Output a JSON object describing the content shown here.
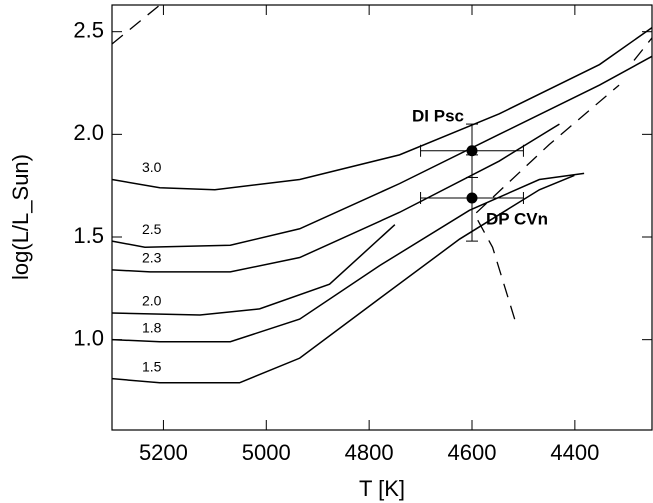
{
  "chart_data": {
    "type": "line",
    "x_label": "T [K]",
    "y_label": "log(L/L_Sun)",
    "xlim": [
      5300,
      4250
    ],
    "ylim": [
      0.56,
      2.63
    ],
    "xticks": [
      5200,
      5000,
      4800,
      4600,
      4400
    ],
    "yticks": [
      {
        "value": 1.0,
        "label": "1.0"
      },
      {
        "value": 1.5,
        "label": "1.5"
      },
      {
        "value": 2.0,
        "label": "2.0"
      },
      {
        "value": 2.5,
        "label": "2.5"
      }
    ],
    "series": [
      {
        "name": "3.0",
        "color": "#000000",
        "x": [
          5300,
          5207,
          5100,
          4935,
          4741,
          4547,
          4352,
          4250
        ],
        "values": [
          1.78,
          1.74,
          1.73,
          1.78,
          1.9,
          2.1,
          2.34,
          2.52
        ]
      },
      {
        "name": "2.5",
        "color": "#000000",
        "x": [
          5300,
          5236,
          5070,
          4935,
          4741,
          4547,
          4352,
          4250
        ],
        "values": [
          1.48,
          1.45,
          1.46,
          1.54,
          1.76,
          2.0,
          2.24,
          2.38
        ]
      },
      {
        "name": "2.3",
        "color": "#000000",
        "x": [
          5300,
          5226,
          5070,
          4935,
          4741,
          4547,
          4430
        ],
        "values": [
          1.34,
          1.33,
          1.33,
          1.4,
          1.62,
          1.87,
          2.05
        ]
      },
      {
        "name": "2.0",
        "color": "#000000",
        "x": [
          5300,
          5129,
          5013,
          4877,
          4750
        ],
        "values": [
          1.13,
          1.12,
          1.15,
          1.27,
          1.56
        ]
      },
      {
        "name": "1.8",
        "color": "#000000",
        "x": [
          5300,
          5207,
          5070,
          4935,
          4780,
          4605,
          4469,
          4382
        ],
        "values": [
          1.0,
          0.99,
          0.99,
          1.1,
          1.36,
          1.63,
          1.78,
          1.81
        ]
      },
      {
        "name": "1.5",
        "color": "#000000",
        "x": [
          5300,
          5207,
          5052,
          4935,
          4780,
          4624,
          4469,
          4401
        ],
        "values": [
          0.81,
          0.79,
          0.79,
          0.91,
          1.2,
          1.49,
          1.73,
          1.8
        ]
      }
    ],
    "lines": [
      {
        "dashed": true,
        "x": [
          5300,
          5207
        ],
        "values": [
          2.44,
          2.63
        ]
      },
      {
        "dashed": true,
        "x": [
          4517,
          4560,
          4595,
          4450,
          4314
        ],
        "values": [
          1.1,
          1.45,
          1.61,
          1.95,
          2.24
        ]
      },
      {
        "dashed": true,
        "x": [
          4285,
          4250
        ],
        "values": [
          2.36,
          2.47
        ]
      }
    ],
    "points": [
      {
        "name": "DI Psc",
        "x": 4600,
        "y": 1.92,
        "xerr": 100,
        "yerr": 0.13
      },
      {
        "name": "DP CVn",
        "x": 4600,
        "y": 1.69,
        "xerr": 100,
        "yerr": 0.21
      }
    ]
  }
}
